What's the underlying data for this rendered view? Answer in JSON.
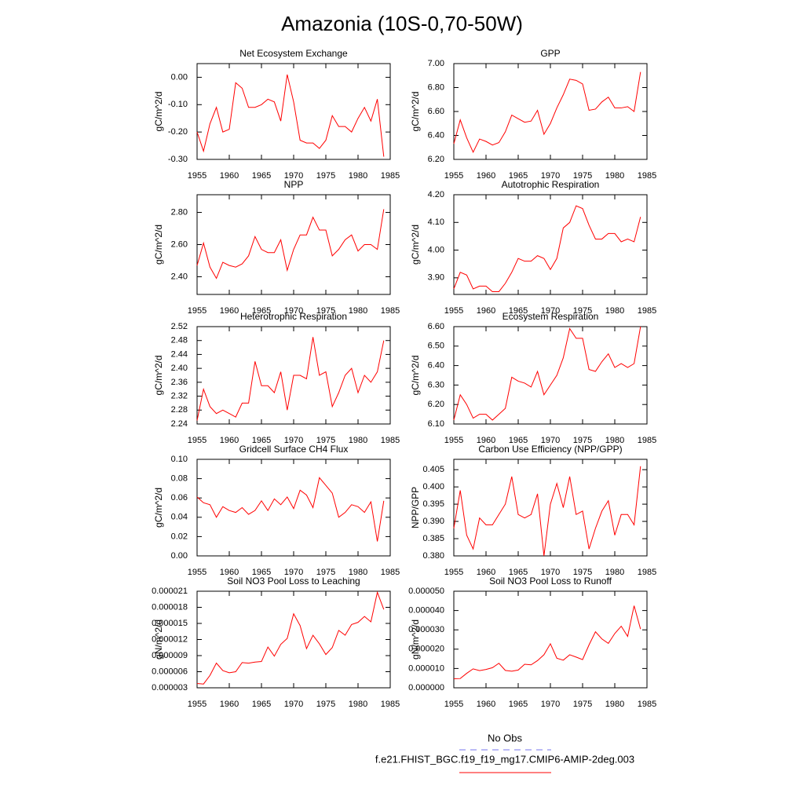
{
  "title": "Amazonia (10S-0,70-50W)",
  "legend": [
    {
      "name": "No Obs",
      "color": "#7777ee",
      "dashed": true
    },
    {
      "name": "f.e21.FHIST_BGC.f19_f19_mg17.CMIP6-AMIP-2deg.003",
      "color": "#ff0000",
      "dashed": false
    }
  ],
  "chart_data": [
    {
      "type": "line",
      "title": "Net Ecosystem Exchange",
      "ylabel": "gC/m^2/d",
      "xlim": [
        1955,
        1985
      ],
      "xticks": [
        1955,
        1960,
        1965,
        1970,
        1975,
        1980,
        1985
      ],
      "ylim": [
        -0.3,
        0.05
      ],
      "yticks": [
        {
          "value": -0.3,
          "label": "-0.30"
        },
        {
          "value": -0.2,
          "label": "-0.20"
        },
        {
          "value": -0.1,
          "label": "-0.10"
        },
        {
          "value": 0,
          "label": "0.00"
        }
      ],
      "x": [
        1955,
        1956,
        1957,
        1958,
        1959,
        1960,
        1961,
        1962,
        1963,
        1964,
        1965,
        1966,
        1967,
        1968,
        1969,
        1970,
        1971,
        1972,
        1973,
        1974,
        1975,
        1976,
        1977,
        1978,
        1979,
        1980,
        1981,
        1982,
        1983,
        1984
      ],
      "series": [
        {
          "color": "#ff0000",
          "values": [
            -0.2,
            -0.27,
            -0.17,
            -0.11,
            -0.2,
            -0.19,
            -0.02,
            -0.04,
            -0.11,
            -0.11,
            -0.1,
            -0.08,
            -0.09,
            -0.16,
            0.01,
            -0.09,
            -0.23,
            -0.24,
            -0.24,
            -0.26,
            -0.23,
            -0.14,
            -0.18,
            -0.18,
            -0.2,
            -0.15,
            -0.11,
            -0.16,
            -0.08,
            -0.29
          ]
        }
      ]
    },
    {
      "type": "line",
      "title": "GPP",
      "ylabel": "gC/m^2/d",
      "xlim": [
        1955,
        1985
      ],
      "xticks": [
        1955,
        1960,
        1965,
        1970,
        1975,
        1980,
        1985
      ],
      "ylim": [
        6.2,
        7.0
      ],
      "yticks": [
        {
          "value": 6.2,
          "label": "6.20"
        },
        {
          "value": 6.4,
          "label": "6.40"
        },
        {
          "value": 6.6,
          "label": "6.60"
        },
        {
          "value": 6.8,
          "label": "6.80"
        },
        {
          "value": 7.0,
          "label": "7.00"
        }
      ],
      "x": [
        1955,
        1956,
        1957,
        1958,
        1959,
        1960,
        1961,
        1962,
        1963,
        1964,
        1965,
        1966,
        1967,
        1968,
        1969,
        1970,
        1971,
        1972,
        1973,
        1974,
        1975,
        1976,
        1977,
        1978,
        1979,
        1980,
        1981,
        1982,
        1983,
        1984
      ],
      "series": [
        {
          "color": "#ff0000",
          "values": [
            6.33,
            6.53,
            6.38,
            6.26,
            6.37,
            6.35,
            6.32,
            6.34,
            6.43,
            6.57,
            6.54,
            6.51,
            6.52,
            6.61,
            6.41,
            6.5,
            6.63,
            6.74,
            6.87,
            6.86,
            6.83,
            6.61,
            6.62,
            6.68,
            6.72,
            6.63,
            6.63,
            6.64,
            6.6,
            6.93
          ]
        }
      ]
    },
    {
      "type": "line",
      "title": "NPP",
      "ylabel": "gC/m^2/d",
      "xlim": [
        1955,
        1985
      ],
      "xticks": [
        1955,
        1960,
        1965,
        1970,
        1975,
        1980,
        1985
      ],
      "ylim": [
        2.29,
        2.91
      ],
      "yticks": [
        {
          "value": 2.4,
          "label": "2.40"
        },
        {
          "value": 2.6,
          "label": "2.60"
        },
        {
          "value": 2.8,
          "label": "2.80"
        }
      ],
      "x": [
        1955,
        1956,
        1957,
        1958,
        1959,
        1960,
        1961,
        1962,
        1963,
        1964,
        1965,
        1966,
        1967,
        1968,
        1969,
        1970,
        1971,
        1972,
        1973,
        1974,
        1975,
        1976,
        1977,
        1978,
        1979,
        1980,
        1981,
        1982,
        1983,
        1984
      ],
      "series": [
        {
          "color": "#ff0000",
          "values": [
            2.47,
            2.61,
            2.46,
            2.39,
            2.49,
            2.47,
            2.46,
            2.48,
            2.53,
            2.65,
            2.57,
            2.55,
            2.55,
            2.63,
            2.44,
            2.57,
            2.66,
            2.66,
            2.77,
            2.69,
            2.69,
            2.53,
            2.57,
            2.63,
            2.66,
            2.56,
            2.6,
            2.6,
            2.57,
            2.82
          ]
        }
      ]
    },
    {
      "type": "line",
      "title": "Autotrophic Respiration",
      "ylabel": "gC/m^2/d",
      "xlim": [
        1955,
        1985
      ],
      "xticks": [
        1955,
        1960,
        1965,
        1970,
        1975,
        1980,
        1985
      ],
      "ylim": [
        3.84,
        4.2
      ],
      "yticks": [
        {
          "value": 3.9,
          "label": "3.90"
        },
        {
          "value": 4.0,
          "label": "4.00"
        },
        {
          "value": 4.1,
          "label": "4.10"
        },
        {
          "value": 4.2,
          "label": "4.20"
        }
      ],
      "x": [
        1955,
        1956,
        1957,
        1958,
        1959,
        1960,
        1961,
        1962,
        1963,
        1964,
        1965,
        1966,
        1967,
        1968,
        1969,
        1970,
        1971,
        1972,
        1973,
        1974,
        1975,
        1976,
        1977,
        1978,
        1979,
        1980,
        1981,
        1982,
        1983,
        1984
      ],
      "series": [
        {
          "color": "#ff0000",
          "values": [
            3.86,
            3.92,
            3.91,
            3.86,
            3.87,
            3.87,
            3.85,
            3.85,
            3.88,
            3.92,
            3.97,
            3.96,
            3.96,
            3.98,
            3.97,
            3.93,
            3.97,
            4.08,
            4.1,
            4.16,
            4.15,
            4.09,
            4.04,
            4.04,
            4.06,
            4.06,
            4.03,
            4.04,
            4.03,
            4.12
          ]
        }
      ]
    },
    {
      "type": "line",
      "title": "Heterotrophic Respiration",
      "ylabel": "gC/m^2/d",
      "xlim": [
        1955,
        1985
      ],
      "xticks": [
        1955,
        1960,
        1965,
        1970,
        1975,
        1980,
        1985
      ],
      "ylim": [
        2.24,
        2.52
      ],
      "yticks": [
        2.24,
        2.28,
        2.32,
        2.36,
        {
          "value": 2.4,
          "label": "2.40"
        },
        2.44,
        2.48,
        2.52
      ],
      "x": [
        1955,
        1956,
        1957,
        1958,
        1959,
        1960,
        1961,
        1962,
        1963,
        1964,
        1965,
        1966,
        1967,
        1968,
        1969,
        1970,
        1971,
        1972,
        1973,
        1974,
        1975,
        1976,
        1977,
        1978,
        1979,
        1980,
        1981,
        1982,
        1983,
        1984
      ],
      "series": [
        {
          "color": "#ff0000",
          "values": [
            2.25,
            2.34,
            2.29,
            2.27,
            2.28,
            2.27,
            2.26,
            2.3,
            2.3,
            2.42,
            2.35,
            2.35,
            2.33,
            2.39,
            2.28,
            2.38,
            2.38,
            2.37,
            2.49,
            2.38,
            2.39,
            2.29,
            2.33,
            2.38,
            2.4,
            2.33,
            2.38,
            2.36,
            2.39,
            2.48
          ]
        }
      ]
    },
    {
      "type": "line",
      "title": "Ecosystem Respiration",
      "ylabel": "gC/m^2/d",
      "xlim": [
        1955,
        1985
      ],
      "xticks": [
        1955,
        1960,
        1965,
        1970,
        1975,
        1980,
        1985
      ],
      "ylim": [
        6.1,
        6.6
      ],
      "yticks": [
        {
          "value": 6.1,
          "label": "6.10"
        },
        {
          "value": 6.2,
          "label": "6.20"
        },
        {
          "value": 6.3,
          "label": "6.30"
        },
        {
          "value": 6.4,
          "label": "6.40"
        },
        {
          "value": 6.5,
          "label": "6.50"
        },
        {
          "value": 6.6,
          "label": "6.60"
        }
      ],
      "x": [
        1955,
        1956,
        1957,
        1958,
        1959,
        1960,
        1961,
        1962,
        1963,
        1964,
        1965,
        1966,
        1967,
        1968,
        1969,
        1970,
        1971,
        1972,
        1973,
        1974,
        1975,
        1976,
        1977,
        1978,
        1979,
        1980,
        1981,
        1982,
        1983,
        1984
      ],
      "series": [
        {
          "color": "#ff0000",
          "values": [
            6.12,
            6.25,
            6.2,
            6.13,
            6.15,
            6.15,
            6.12,
            6.15,
            6.18,
            6.34,
            6.32,
            6.31,
            6.29,
            6.37,
            6.25,
            6.3,
            6.35,
            6.44,
            6.59,
            6.54,
            6.54,
            6.38,
            6.37,
            6.42,
            6.46,
            6.39,
            6.41,
            6.39,
            6.41,
            6.6
          ]
        }
      ]
    },
    {
      "type": "line",
      "title": "Gridcell Surface CH4 Flux",
      "ylabel": "gC/m^2/d",
      "xlim": [
        1955,
        1985
      ],
      "xticks": [
        1955,
        1960,
        1965,
        1970,
        1975,
        1980,
        1985
      ],
      "ylim": [
        0,
        0.1
      ],
      "yticks": [
        {
          "value": 0,
          "label": "0.00"
        },
        {
          "value": 0.02,
          "label": "0.02"
        },
        {
          "value": 0.04,
          "label": "0.04"
        },
        {
          "value": 0.06,
          "label": "0.06"
        },
        {
          "value": 0.08,
          "label": "0.08"
        },
        {
          "value": 0.1,
          "label": "0.10"
        }
      ],
      "x": [
        1955,
        1956,
        1957,
        1958,
        1959,
        1960,
        1961,
        1962,
        1963,
        1964,
        1965,
        1966,
        1967,
        1968,
        1969,
        1970,
        1971,
        1972,
        1973,
        1974,
        1975,
        1976,
        1977,
        1978,
        1979,
        1980,
        1981,
        1982,
        1983,
        1984
      ],
      "series": [
        {
          "color": "#ff0000",
          "values": [
            0.061,
            0.055,
            0.053,
            0.04,
            0.051,
            0.047,
            0.045,
            0.05,
            0.043,
            0.047,
            0.057,
            0.047,
            0.059,
            0.053,
            0.061,
            0.049,
            0.068,
            0.063,
            0.05,
            0.081,
            0.073,
            0.065,
            0.04,
            0.045,
            0.053,
            0.051,
            0.045,
            0.056,
            0.015,
            0.057
          ]
        }
      ]
    },
    {
      "type": "line",
      "title": "Carbon Use Efficiency (NPP/GPP)",
      "ylabel": "NPP/GPP",
      "xlim": [
        1955,
        1985
      ],
      "xticks": [
        1955,
        1960,
        1965,
        1970,
        1975,
        1980,
        1985
      ],
      "ylim": [
        0.38,
        0.408
      ],
      "yticks": [
        {
          "value": 0.38,
          "label": "0.380"
        },
        0.385,
        {
          "value": 0.39,
          "label": "0.390"
        },
        0.395,
        {
          "value": 0.4,
          "label": "0.400"
        },
        0.405
      ],
      "x": [
        1955,
        1956,
        1957,
        1958,
        1959,
        1960,
        1961,
        1962,
        1963,
        1964,
        1965,
        1966,
        1967,
        1968,
        1969,
        1970,
        1971,
        1972,
        1973,
        1974,
        1975,
        1976,
        1977,
        1978,
        1979,
        1980,
        1981,
        1982,
        1983,
        1984
      ],
      "series": [
        {
          "color": "#ff0000",
          "values": [
            0.388,
            0.399,
            0.386,
            0.382,
            0.391,
            0.389,
            0.389,
            0.392,
            0.395,
            0.403,
            0.392,
            0.391,
            0.392,
            0.398,
            0.38,
            0.395,
            0.401,
            0.394,
            0.403,
            0.392,
            0.393,
            0.382,
            0.388,
            0.393,
            0.396,
            0.386,
            0.392,
            0.392,
            0.389,
            0.406
          ]
        }
      ]
    },
    {
      "type": "line",
      "title": "Soil NO3 Pool Loss to Leaching",
      "ylabel": "gN/m^2/d",
      "xlim": [
        1955,
        1985
      ],
      "xticks": [
        1955,
        1960,
        1965,
        1970,
        1975,
        1980,
        1985
      ],
      "ylim": [
        3e-06,
        2.1e-05
      ],
      "yticks": [
        {
          "value": 3e-06,
          "label": "0.000003"
        },
        {
          "value": 6e-06,
          "label": "0.000006"
        },
        {
          "value": 9e-06,
          "label": "0.000009"
        },
        {
          "value": 1.2e-05,
          "label": "0.000012"
        },
        {
          "value": 1.5e-05,
          "label": "0.000015"
        },
        {
          "value": 1.8e-05,
          "label": "0.000018"
        },
        {
          "value": 2.1e-05,
          "label": "0.000021"
        }
      ],
      "x": [
        1955,
        1956,
        1957,
        1958,
        1959,
        1960,
        1961,
        1962,
        1963,
        1964,
        1965,
        1966,
        1967,
        1968,
        1969,
        1970,
        1971,
        1972,
        1973,
        1974,
        1975,
        1976,
        1977,
        1978,
        1979,
        1980,
        1981,
        1982,
        1983,
        1984
      ],
      "series": [
        {
          "color": "#ff0000",
          "values": [
            3.8e-06,
            3.7e-06,
            5.3e-06,
            7.6e-06,
            6.2e-06,
            5.8e-06,
            6e-06,
            7.7e-06,
            7.6e-06,
            7.8e-06,
            7.9e-06,
            1.06e-05,
            8.9e-06,
            1.11e-05,
            1.22e-05,
            1.68e-05,
            1.46e-05,
            1.03e-05,
            1.28e-05,
            1.12e-05,
            9.2e-06,
            1.05e-05,
            1.37e-05,
            1.28e-05,
            1.48e-05,
            1.52e-05,
            1.63e-05,
            1.53e-05,
            2.08e-05,
            1.76e-05
          ]
        }
      ]
    },
    {
      "type": "line",
      "title": "Soil NO3 Pool Loss to Runoff",
      "ylabel": "gN/m^2/d",
      "xlim": [
        1955,
        1985
      ],
      "xticks": [
        1955,
        1960,
        1965,
        1970,
        1975,
        1980,
        1985
      ],
      "ylim": [
        0,
        5e-05
      ],
      "yticks": [
        {
          "value": 0,
          "label": "0.000000"
        },
        {
          "value": 1e-05,
          "label": "0.000010"
        },
        {
          "value": 2e-05,
          "label": "0.000020"
        },
        {
          "value": 3e-05,
          "label": "0.000030"
        },
        {
          "value": 4e-05,
          "label": "0.000040"
        },
        {
          "value": 5e-05,
          "label": "0.000050"
        }
      ],
      "x": [
        1955,
        1956,
        1957,
        1958,
        1959,
        1960,
        1961,
        1962,
        1963,
        1964,
        1965,
        1966,
        1967,
        1968,
        1969,
        1970,
        1971,
        1972,
        1973,
        1974,
        1975,
        1976,
        1977,
        1978,
        1979,
        1980,
        1981,
        1982,
        1983,
        1984
      ],
      "series": [
        {
          "color": "#ff0000",
          "values": [
            4.7e-06,
            4.8e-06,
            7.5e-06,
            9.8e-06,
            8.9e-06,
            9.5e-06,
            1.04e-05,
            1.27e-05,
            9e-06,
            8.6e-06,
            9.2e-06,
            1.22e-05,
            1.19e-05,
            1.41e-05,
            1.71e-05,
            2.28e-05,
            1.53e-05,
            1.43e-05,
            1.71e-05,
            1.59e-05,
            1.46e-05,
            2.22e-05,
            2.9e-05,
            2.53e-05,
            2.3e-05,
            2.81e-05,
            3.19e-05,
            2.66e-05,
            4.25e-05,
            3.04e-05
          ]
        }
      ]
    }
  ]
}
